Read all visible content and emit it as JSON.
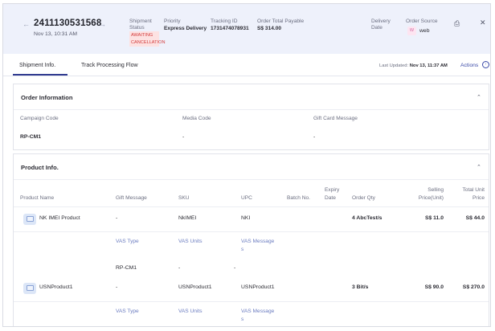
{
  "header": {
    "order_id": "2411130531568",
    "order_date": "Nov 13, 10:31 AM",
    "shipment_status_label": "Shipment Status",
    "shipment_status_value": "AWAITING CANCELLATION",
    "priority_label": "Priority",
    "priority_value": "Express Delivery",
    "tracking_label": "Tracking ID",
    "tracking_value": "1731474078931",
    "total_label": "Order Total Payable",
    "total_value": "S$ 314.00",
    "delivery_label": "Delivery Date",
    "source_label": "Order Source",
    "source_badge": "W",
    "source_value": "web",
    "icons": [
      "chevron-left-icon",
      "chevron-right-icon",
      "print-icon",
      "close-icon"
    ]
  },
  "tabs": [
    {
      "label": "Shipment Info.",
      "active": true
    },
    {
      "label": "Track Processing Flow",
      "active": false
    }
  ],
  "last_updated_label": "Last Updated:",
  "last_updated_value": "Nov 13, 11:37 AM",
  "actions_label": "Actions",
  "order_info": {
    "title": "Order Information",
    "fields": [
      {
        "label": "Campaign Code",
        "value": "RP-CM1"
      },
      {
        "label": "Media Code",
        "value": "-"
      },
      {
        "label": "Gift Card Message",
        "value": "-"
      }
    ]
  },
  "product_info": {
    "title": "Product Info.",
    "columns": {
      "name": "Product Name",
      "gift": "Gift Message",
      "sku": "SKU",
      "upc": "UPC",
      "batch": "Batch No.",
      "expiry": "Expiry Date",
      "qty": "Order Qty",
      "price": "Selling Price(Unit)",
      "total": "Total Unit Price"
    },
    "vas_headers": {
      "type": "VAS Type",
      "units": "VAS Units",
      "message": "VAS Messages"
    },
    "products": [
      {
        "name": "NK IMEI Product",
        "gift": "-",
        "sku": "NkIMEI",
        "upc": "NKI",
        "qty": "4 AbcTest/s",
        "price": "S$ 11.0",
        "total": "S$ 44.0",
        "vas": {
          "type": "RP-CM1",
          "units": "-",
          "message": "-"
        }
      },
      {
        "name": "USNProduct1",
        "gift": "-",
        "sku": "USNProduct1",
        "upc": "USNProduct1",
        "qty": "3 Bit/s",
        "price": "S$ 90.0",
        "total": "S$ 270.0"
      }
    ]
  }
}
